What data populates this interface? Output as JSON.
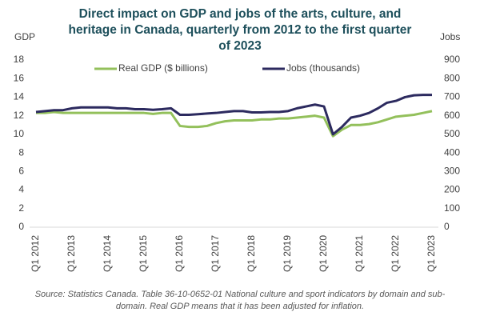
{
  "chart_data": {
    "type": "line",
    "title": [
      "Direct impact on GDP and jobs of the arts, culture, and",
      "heritage in Canada, quarterly from 2012 to the first quarter",
      "of 2023"
    ],
    "y_label": "GDP",
    "y2_label": "Jobs",
    "source": [
      "Source: Statistics Canada. Table 36-10-0652-01  National culture and sport indicators by domain and sub-",
      "domain. Real GDP means that it has been adjusted for inflation."
    ],
    "categories": [
      "Q1 2012",
      null,
      null,
      null,
      "Q1 2013",
      null,
      null,
      null,
      "Q1 2014",
      null,
      null,
      null,
      "Q1 2015",
      null,
      null,
      null,
      "Q1 2016",
      null,
      null,
      null,
      "Q1 2017",
      null,
      null,
      null,
      "Q1 2018",
      null,
      null,
      null,
      "Q1 2019",
      null,
      null,
      null,
      "Q1 2020",
      null,
      null,
      null,
      "Q1 2021",
      null,
      null,
      null,
      "Q1 2022",
      null,
      null,
      null,
      "Q1 2023"
    ],
    "series": [
      {
        "name": "Real GDP ($ billions)",
        "color": "#93c05b",
        "axis": "y",
        "values": [
          12.3,
          12.3,
          12.4,
          12.3,
          12.3,
          12.3,
          12.3,
          12.3,
          12.3,
          12.3,
          12.3,
          12.3,
          12.3,
          12.2,
          12.3,
          12.3,
          10.9,
          10.8,
          10.8,
          10.9,
          11.2,
          11.4,
          11.5,
          11.5,
          11.5,
          11.6,
          11.6,
          11.7,
          11.7,
          11.8,
          11.9,
          12.0,
          11.8,
          9.8,
          10.5,
          11.0,
          11.0,
          11.1,
          11.3,
          11.6,
          11.9,
          12.0,
          12.1,
          12.3,
          12.5
        ]
      },
      {
        "name": "Jobs (thousands)",
        "color": "#2c2a5f",
        "axis": "y2",
        "values": [
          620,
          625,
          630,
          630,
          640,
          645,
          645,
          645,
          645,
          640,
          640,
          635,
          635,
          632,
          635,
          640,
          605,
          605,
          608,
          612,
          615,
          620,
          625,
          625,
          618,
          618,
          620,
          620,
          625,
          640,
          650,
          660,
          650,
          500,
          540,
          590,
          600,
          615,
          640,
          670,
          680,
          700,
          710,
          712,
          712
        ]
      }
    ],
    "ylim": [
      0,
      18
    ],
    "yticks": [
      0,
      2,
      4,
      6,
      8,
      10,
      12,
      14,
      16,
      18
    ],
    "y2lim": [
      0,
      900
    ],
    "y2ticks": [
      0,
      100,
      200,
      300,
      400,
      500,
      600,
      700,
      800,
      900
    ],
    "grid": false,
    "legend": "top"
  }
}
